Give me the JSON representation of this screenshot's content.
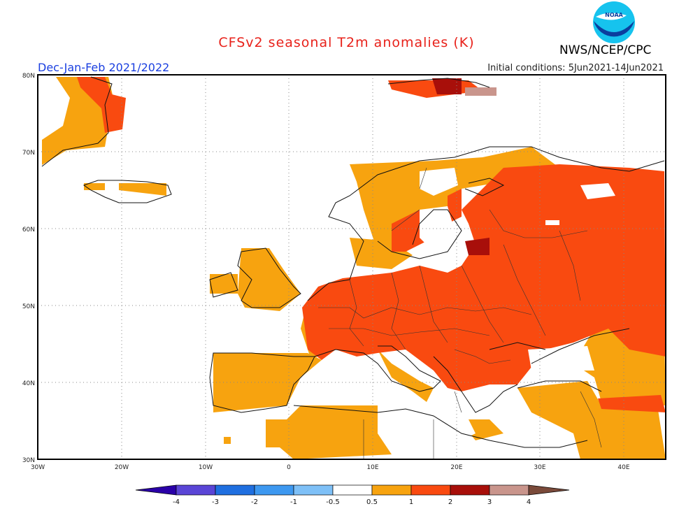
{
  "title": "CFSv2 seasonal T2m anomalies (K)",
  "organization": "NWS/NCEP/CPC",
  "logo_text": "NOAA",
  "season": "Dec-Jan-Feb 2021/2022",
  "initial_conditions": "Initial conditions: 5Jun2021-14Jun2021",
  "lat_labels": [
    "80N",
    "70N",
    "60N",
    "50N",
    "40N",
    "30N"
  ],
  "lon_labels": [
    "30W",
    "20W",
    "10W",
    "0",
    "10E",
    "20E",
    "30E",
    "40E"
  ],
  "colorbar": {
    "labels": [
      "-4",
      "-3",
      "-2",
      "-1",
      "-0.5",
      "0.5",
      "1",
      "2",
      "3",
      "4"
    ],
    "colors": [
      "#2a00a8",
      "#5a45d6",
      "#1f6fe0",
      "#3d98f0",
      "#7ec0f7",
      "#ffffff",
      "#f7a30f",
      "#f94a10",
      "#a80f0a",
      "#c9958c",
      "#7a4a3a"
    ]
  },
  "colors": {
    "title": "#e8211a",
    "season": "#1a3fe0"
  }
}
